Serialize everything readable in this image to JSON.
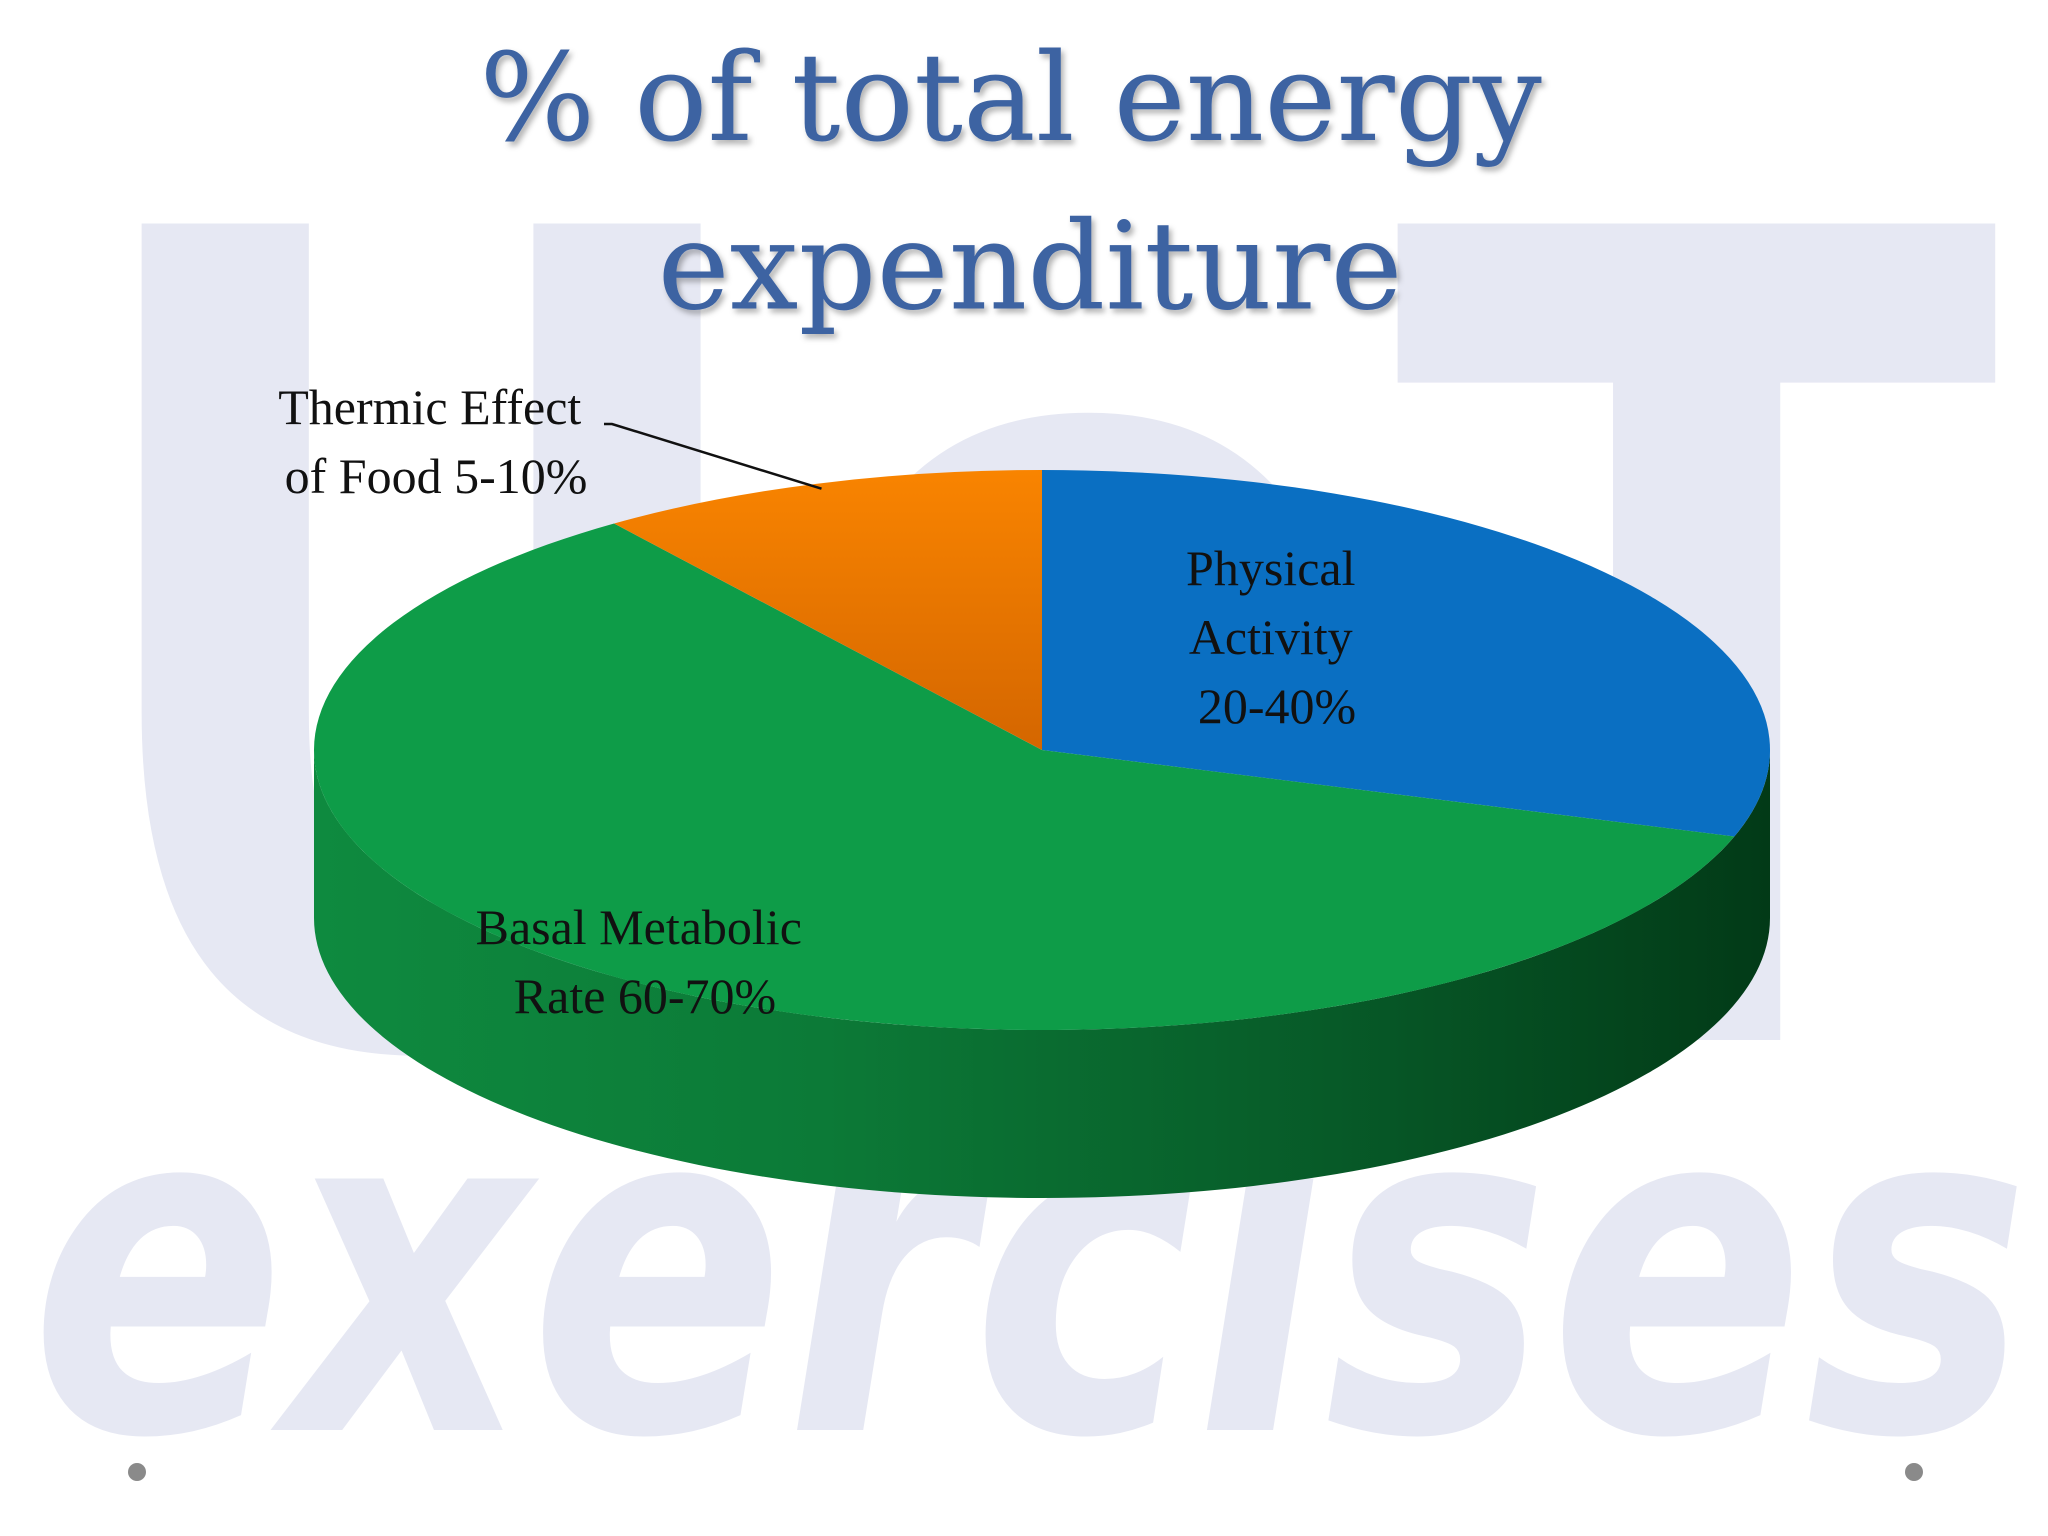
{
  "chart_data": {
    "type": "pie",
    "title": "% of total energy expenditure",
    "title_lines": [
      "% of total energy",
      "expenditure"
    ],
    "series": [
      {
        "label_lines": [
          "Physical",
          "Activity",
          "20-40%"
        ],
        "value": 30,
        "color": "#0a6fc2"
      },
      {
        "label_lines": [
          "Basal Metabolic",
          "Rate 60-70%"
        ],
        "value": 60,
        "color": "#0e9c48"
      },
      {
        "label_lines": [
          "Thermic Effect",
          "of Food 5-10%"
        ],
        "value": 10,
        "color": "#f07e00"
      }
    ]
  },
  "watermark": {
    "text_top": "UoT",
    "text_bottom": "exercises",
    "color": "#e6e8f3"
  },
  "decor": {
    "bullet_color": "#8a8a8a"
  }
}
